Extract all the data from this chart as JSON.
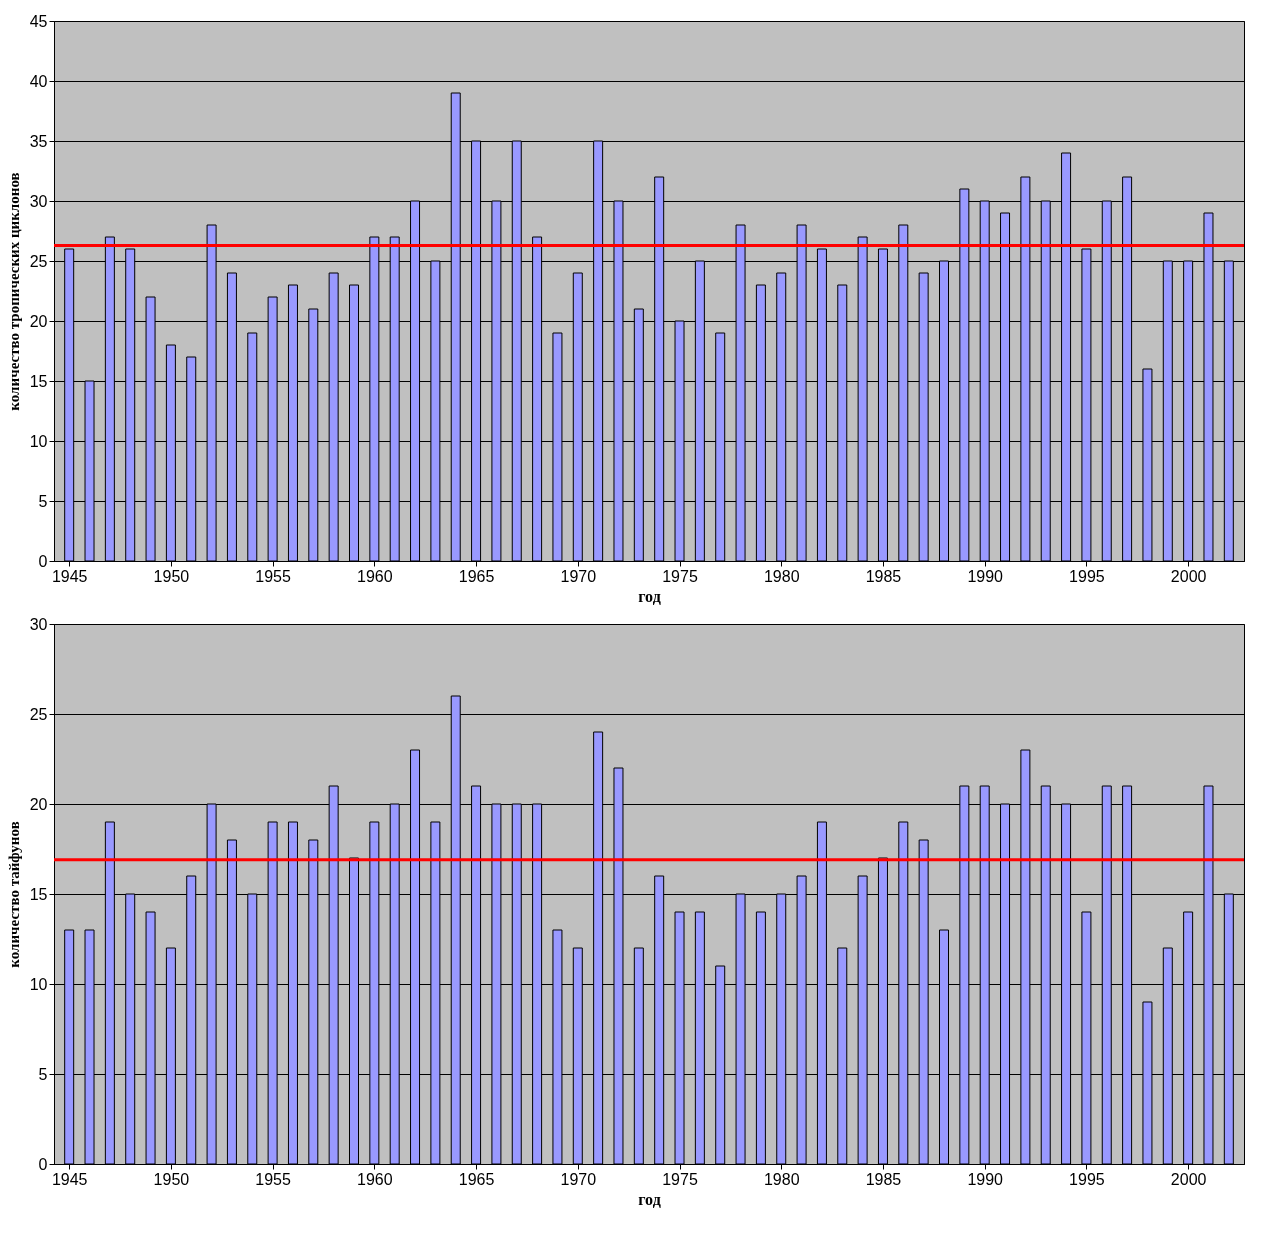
{
  "chart_data": [
    {
      "type": "bar",
      "xlabel": "год",
      "ylabel": "количество тропических циклонов",
      "x": [
        1945,
        1946,
        1947,
        1948,
        1949,
        1950,
        1951,
        1952,
        1953,
        1954,
        1955,
        1956,
        1957,
        1958,
        1959,
        1960,
        1961,
        1962,
        1963,
        1964,
        1965,
        1966,
        1967,
        1968,
        1969,
        1970,
        1971,
        1972,
        1973,
        1974,
        1975,
        1976,
        1977,
        1978,
        1979,
        1980,
        1981,
        1982,
        1983,
        1984,
        1985,
        1986,
        1987,
        1988,
        1989,
        1990,
        1991,
        1992,
        1993,
        1994,
        1995,
        1996,
        1997,
        1998,
        1999,
        2000,
        2001,
        2002
      ],
      "values": [
        26,
        15,
        27,
        26,
        22,
        18,
        17,
        28,
        24,
        19,
        22,
        23,
        21,
        24,
        23,
        27,
        27,
        30,
        25,
        39,
        35,
        30,
        35,
        27,
        19,
        24,
        35,
        30,
        21,
        32,
        20,
        25,
        19,
        28,
        23,
        24,
        28,
        26,
        23,
        27,
        26,
        28,
        24,
        25,
        31,
        30,
        29,
        32,
        30,
        34,
        26,
        30,
        32,
        16,
        25,
        25,
        29,
        25
      ],
      "color": "#9999ff",
      "xlim": [
        1944.5,
        2002.5
      ],
      "xticks": [
        1945,
        1950,
        1955,
        1960,
        1965,
        1970,
        1975,
        1980,
        1985,
        1990,
        1995,
        2000
      ],
      "ylim": [
        0,
        45
      ],
      "yticks": [
        0,
        5,
        10,
        15,
        20,
        25,
        30,
        35,
        40,
        45
      ],
      "grid": "y",
      "ref_lines": [
        {
          "axis": "y",
          "value": 26.3,
          "color": "#ff0000"
        }
      ]
    },
    {
      "type": "bar",
      "xlabel": "год",
      "ylabel": "количество тайфунов",
      "x": [
        1945,
        1946,
        1947,
        1948,
        1949,
        1950,
        1951,
        1952,
        1953,
        1954,
        1955,
        1956,
        1957,
        1958,
        1959,
        1960,
        1961,
        1962,
        1963,
        1964,
        1965,
        1966,
        1967,
        1968,
        1969,
        1970,
        1971,
        1972,
        1973,
        1974,
        1975,
        1976,
        1977,
        1978,
        1979,
        1980,
        1981,
        1982,
        1983,
        1984,
        1985,
        1986,
        1987,
        1988,
        1989,
        1990,
        1991,
        1992,
        1993,
        1994,
        1995,
        1996,
        1997,
        1998,
        1999,
        2000,
        2001,
        2002
      ],
      "values": [
        13,
        13,
        19,
        15,
        14,
        12,
        16,
        20,
        18,
        15,
        19,
        19,
        18,
        21,
        17,
        19,
        20,
        23,
        19,
        26,
        21,
        20,
        20,
        20,
        13,
        12,
        24,
        22,
        12,
        16,
        14,
        14,
        11,
        15,
        14,
        15,
        16,
        19,
        12,
        16,
        17,
        19,
        18,
        13,
        21,
        21,
        20,
        23,
        21,
        20,
        14,
        21,
        21,
        9,
        12,
        14,
        21,
        15
      ],
      "color": "#9999ff",
      "xlim": [
        1944.5,
        2002.5
      ],
      "xticks": [
        1945,
        1950,
        1955,
        1960,
        1965,
        1970,
        1975,
        1980,
        1985,
        1990,
        1995,
        2000
      ],
      "ylim": [
        0,
        30
      ],
      "yticks": [
        0,
        5,
        10,
        15,
        20,
        25,
        30
      ],
      "grid": "y",
      "ref_lines": [
        {
          "axis": "y",
          "value": 16.9,
          "color": "#ff0000"
        }
      ]
    }
  ]
}
